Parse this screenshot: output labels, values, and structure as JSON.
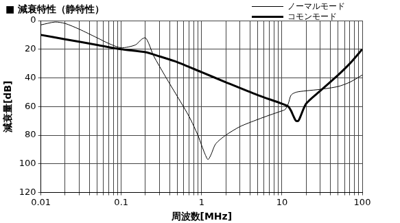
{
  "chart_data": {
    "type": "line",
    "title": "■ 減衰特性（静特性）",
    "x_label": "周波数[MHz]",
    "y_label": "減衰量[dB]",
    "log": "x",
    "grid": true,
    "legend": "upper right",
    "xlim": [
      0.01,
      100
    ],
    "xticks": [
      0.01,
      0.1,
      1,
      10,
      100
    ],
    "ylim": [
      0,
      120
    ],
    "yticks": [
      0,
      20,
      40,
      60,
      80,
      100,
      120
    ],
    "series": [
      {
        "name": "ノーマルモード",
        "color": "#000000",
        "line_style": "thin",
        "x": [
          0.01,
          0.015,
          0.02,
          0.03,
          0.05,
          0.07,
          0.1,
          0.15,
          0.18,
          0.2,
          0.22,
          0.25,
          0.3,
          0.4,
          0.5,
          0.7,
          0.9,
          1.0,
          1.1,
          1.2,
          1.3,
          1.5,
          2,
          3,
          5,
          7,
          10,
          11,
          12,
          13,
          15,
          20,
          30,
          50,
          70,
          100
        ],
        "values": [
          3,
          1,
          2,
          6,
          12,
          16,
          19,
          17,
          13,
          12,
          16,
          24,
          32,
          44,
          53,
          67,
          80,
          87,
          93,
          97,
          94,
          86,
          80,
          74,
          69,
          66,
          63,
          62,
          58,
          52,
          50,
          49,
          48,
          46,
          43,
          38
        ]
      },
      {
        "name": "コモンモード",
        "color": "#000000",
        "line_style": "thick",
        "x": [
          0.01,
          0.02,
          0.05,
          0.1,
          0.2,
          0.3,
          0.5,
          1,
          2,
          5,
          10,
          12,
          13,
          14,
          15,
          16,
          17,
          20,
          30,
          50,
          70,
          100
        ],
        "values": [
          10,
          13,
          17,
          20,
          22,
          25,
          29,
          36,
          43,
          52,
          58,
          60,
          63,
          67,
          70,
          70,
          67,
          58,
          49,
          38,
          30,
          20
        ]
      }
    ]
  }
}
